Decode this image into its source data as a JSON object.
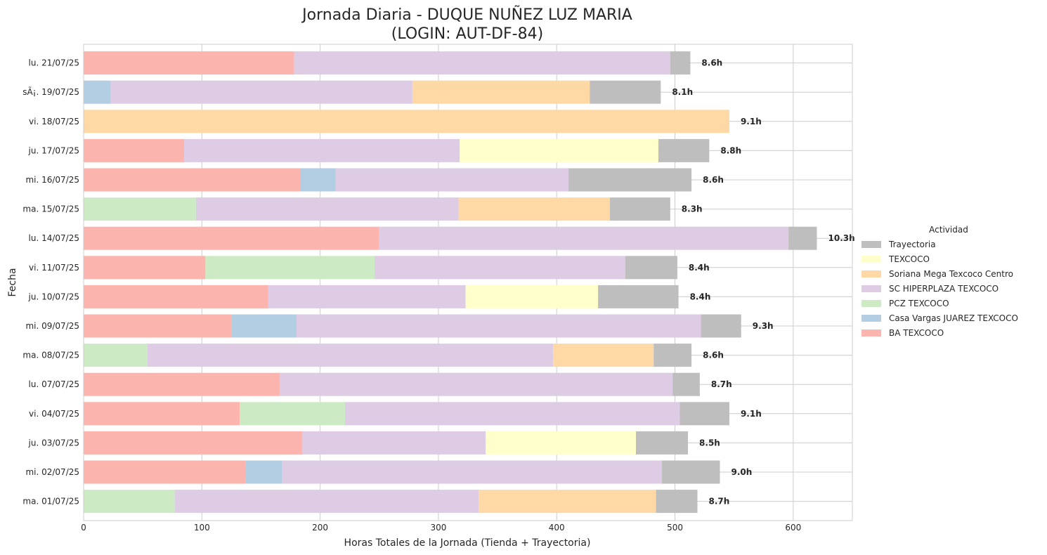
{
  "chart_data": {
    "type": "bar",
    "orientation": "horizontal",
    "stacked": true,
    "title": "Jornada Diaria - DUQUE NUÑEZ LUZ MARIA",
    "subtitle": "(LOGIN: AUT-DF-84)",
    "xlabel": "Horas Totales de la Jornada (Tienda + Trayectoria)",
    "ylabel": "Fecha",
    "xlim": [
      0,
      650
    ],
    "xticks": [
      0,
      100,
      200,
      300,
      400,
      500,
      600
    ],
    "grid": true,
    "legend_title": "Actividad",
    "legend_placement": "center-right",
    "categories": [
      "lu. 21/07/25",
      "sÃ¡. 19/07/25",
      "vi. 18/07/25",
      "ju. 17/07/25",
      "mi. 16/07/25",
      "ma. 15/07/25",
      "lu. 14/07/25",
      "vi. 11/07/25",
      "ju. 10/07/25",
      "mi. 09/07/25",
      "ma. 08/07/25",
      "lu. 07/07/25",
      "vi. 04/07/25",
      "ju. 03/07/25",
      "mi. 02/07/25",
      "ma. 01/07/25"
    ],
    "totals": [
      "8.6h",
      "8.1h",
      "9.1h",
      "8.8h",
      "8.6h",
      "8.3h",
      "10.3h",
      "8.4h",
      "8.4h",
      "9.3h",
      "8.6h",
      "8.7h",
      "9.1h",
      "8.5h",
      "9.0h",
      "8.7h"
    ],
    "series": [
      {
        "name": "BA TEXCOCO",
        "color": "#fbb4ae",
        "values": [
          178,
          0,
          0,
          85,
          183,
          0,
          250,
          103,
          156,
          125,
          0,
          166,
          132,
          185,
          137,
          0
        ]
      },
      {
        "name": "Casa Vargas JUAREZ TEXCOCO",
        "color": "#b3cde3",
        "values": [
          0,
          23,
          0,
          0,
          30,
          0,
          0,
          0,
          0,
          55,
          0,
          0,
          0,
          0,
          31,
          0
        ]
      },
      {
        "name": "PCZ TEXCOCO",
        "color": "#ccebc5",
        "values": [
          0,
          0,
          0,
          0,
          0,
          95,
          0,
          143,
          0,
          0,
          54,
          0,
          89,
          0,
          0,
          77
        ]
      },
      {
        "name": "SC HIPERPLAZA TEXCOCO",
        "color": "#decbe4",
        "values": [
          318,
          255,
          0,
          233,
          197,
          222,
          346,
          212,
          167,
          342,
          343,
          332,
          283,
          155,
          321,
          257
        ]
      },
      {
        "name": "Soriana Mega Texcoco Centro",
        "color": "#fed9a6",
        "values": [
          0,
          150,
          546,
          0,
          0,
          128,
          0,
          0,
          0,
          0,
          85,
          0,
          0,
          0,
          0,
          150
        ]
      },
      {
        "name": "TEXCOCO",
        "color": "#ffffcc",
        "values": [
          0,
          0,
          0,
          168,
          0,
          0,
          0,
          0,
          112,
          0,
          0,
          0,
          0,
          127,
          0,
          0
        ]
      },
      {
        "name": "Trayectoria",
        "color": "#bebebe",
        "values": [
          17,
          60,
          0,
          43,
          104,
          51,
          24,
          44,
          68,
          34,
          32,
          23,
          42,
          44,
          49,
          35
        ]
      }
    ],
    "legend_order": [
      "Trayectoria",
      "TEXCOCO",
      "Soriana Mega Texcoco Centro",
      "SC HIPERPLAZA TEXCOCO",
      "PCZ TEXCOCO",
      "Casa Vargas JUAREZ TEXCOCO",
      "BA TEXCOCO"
    ]
  }
}
